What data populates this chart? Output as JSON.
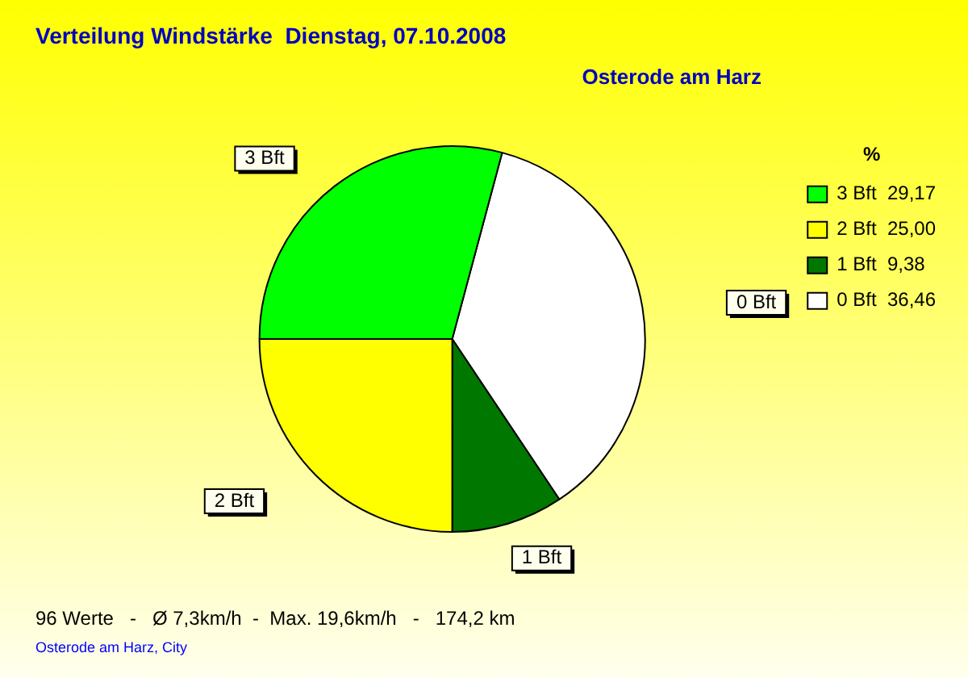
{
  "chart_data": {
    "type": "pie",
    "title": "Verteilung Windstärke  Dienstag, 07.10.2008",
    "subtitle": "Osterode am Harz",
    "legend_title": "%",
    "legend": "top right",
    "categories": [
      "3 Bft",
      "2 Bft",
      "1 Bft",
      "0 Bft"
    ],
    "values": [
      29.17,
      25.0,
      9.38,
      36.46
    ],
    "value_labels": [
      "29,17",
      "25,00",
      "9,38",
      "36,46"
    ],
    "colors": [
      "#00ff00",
      "#ffff00",
      "#007800",
      "#ffffff"
    ],
    "annotations": [
      "96 Werte   -   Ø 7,3km/h  -  Max. 19,6km/h   -   174,2 km",
      "Osterode am Harz, City"
    ]
  }
}
